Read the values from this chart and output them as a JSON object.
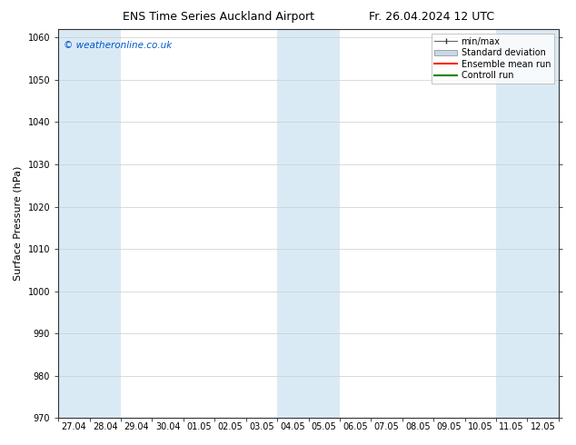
{
  "title": "ENS Time Series Auckland Airport",
  "title_right": "Fr. 26.04.2024 12 UTC",
  "ylabel": "Surface Pressure (hPa)",
  "ylim": [
    970,
    1062
  ],
  "yticks": [
    970,
    980,
    990,
    1000,
    1010,
    1020,
    1030,
    1040,
    1050,
    1060
  ],
  "x_labels": [
    "27.04",
    "28.04",
    "29.04",
    "30.04",
    "01.05",
    "02.05",
    "03.05",
    "04.05",
    "05.05",
    "06.05",
    "07.05",
    "08.05",
    "09.05",
    "10.05",
    "11.05",
    "12.05"
  ],
  "num_days": 16,
  "band_color": "#daeaf5",
  "background_color": "#ffffff",
  "watermark": "© weatheronline.co.uk",
  "watermark_color": "#0055cc",
  "blue_band_indices": [
    0,
    1,
    7,
    8,
    14,
    15
  ],
  "legend_items": [
    {
      "label": "min/max",
      "color": "#888888",
      "lw": 1.0,
      "style": "-"
    },
    {
      "label": "Standard deviation",
      "color": "#bbccdd",
      "lw": 6,
      "style": "-"
    },
    {
      "label": "Ensemble mean run",
      "color": "#ff0000",
      "lw": 1.5,
      "style": "-"
    },
    {
      "label": "Controll run",
      "color": "#008800",
      "lw": 1.5,
      "style": "-"
    }
  ],
  "grid_color": "#cccccc",
  "grid_lw": 0.5,
  "tick_fontsize": 7,
  "ylabel_fontsize": 8,
  "title_fontsize": 9,
  "fig_width": 6.34,
  "fig_height": 4.9,
  "dpi": 100
}
